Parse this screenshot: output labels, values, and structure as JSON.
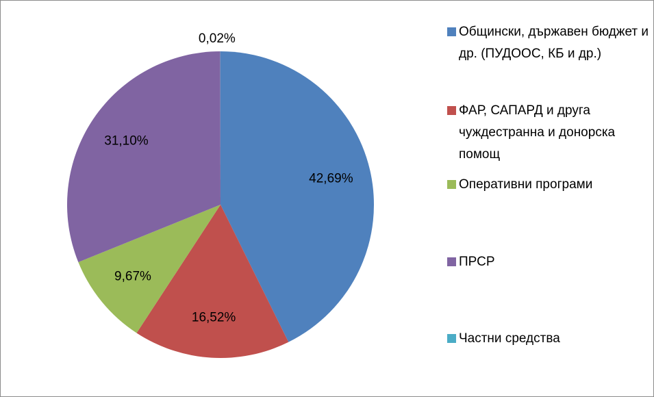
{
  "chart_data": {
    "type": "pie",
    "categories": [
      "Общински, държавен бюджет и др. (ПУДООС, КБ и др.)",
      "ФАР, САПАРД и друга чуждестранна и донорска помощ",
      "Оперативни програми",
      "ПРСР",
      "Частни средства"
    ],
    "values": [
      42.69,
      16.52,
      9.67,
      31.1,
      0.02
    ],
    "value_labels": [
      "42,69%",
      "16,52%",
      "9,67%",
      "31,10%",
      "0,02%"
    ],
    "colors": [
      "#4f81bd",
      "#c0504d",
      "#9bbb59",
      "#8064a2",
      "#4bacc6"
    ],
    "legend": "right"
  }
}
